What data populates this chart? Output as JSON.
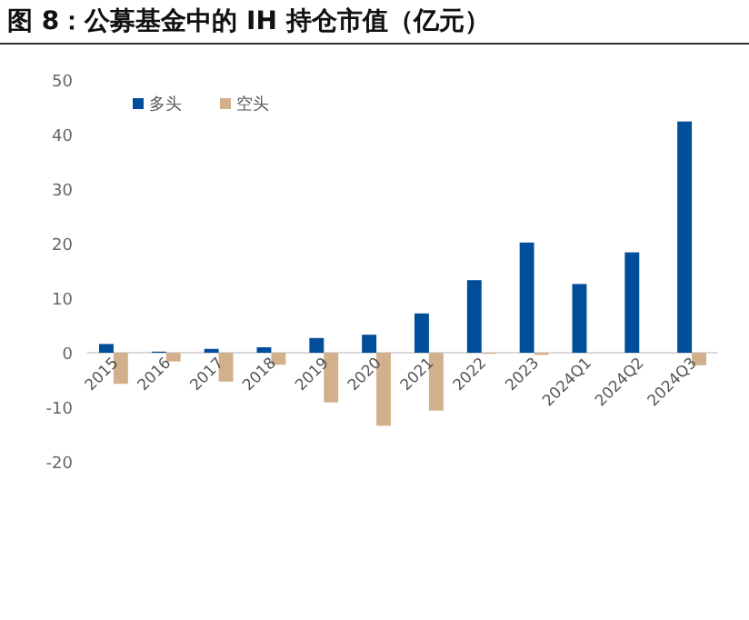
{
  "chart_data": {
    "type": "bar",
    "title": "图 8：公募基金中的 IH 持仓市值（亿元）",
    "categories": [
      "2015",
      "2016",
      "2017",
      "2018",
      "2019",
      "2020",
      "2021",
      "2022",
      "2023",
      "2024Q1",
      "2024Q2",
      "2024Q3"
    ],
    "series": [
      {
        "name": "多头",
        "color": "#004d99",
        "values": [
          1.6,
          0.2,
          0.7,
          1.0,
          2.7,
          3.3,
          7.2,
          13.3,
          20.2,
          12.6,
          18.4,
          42.4
        ]
      },
      {
        "name": "空头",
        "color": "#d2b08c",
        "values": [
          -5.7,
          -1.6,
          -5.3,
          -2.2,
          -9.1,
          -13.4,
          -10.6,
          -0.2,
          -0.4,
          0,
          0,
          -2.3
        ]
      }
    ],
    "ylim": [
      -20,
      50
    ],
    "yticks": [
      -20,
      -10,
      0,
      10,
      20,
      30,
      40,
      50
    ],
    "grid": false,
    "legend": "top left"
  }
}
